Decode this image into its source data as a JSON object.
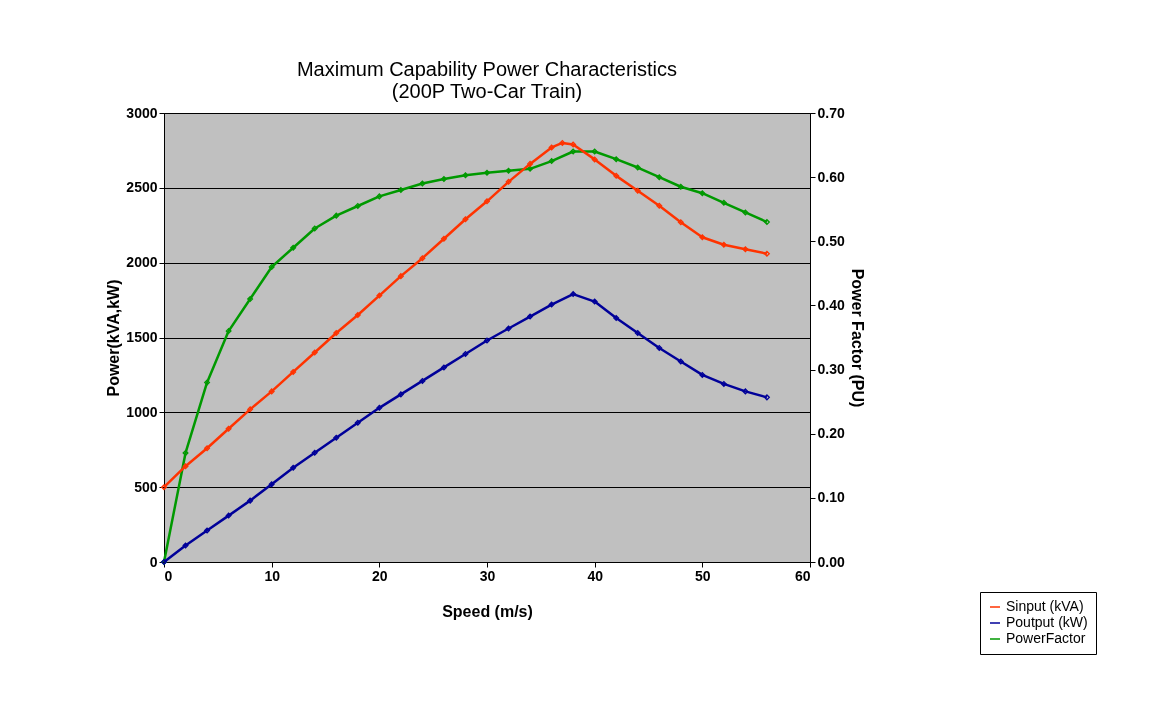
{
  "chart_data": {
    "type": "line",
    "title": [
      "Maximum Capability Power Characteristics",
      "(200P Two-Car Train)"
    ],
    "xlabel": "Speed (m/s)",
    "ylabel": "Power(kVA,kW)",
    "y2label": "Power Factor (PU)",
    "x": [
      0,
      2,
      4,
      6,
      8,
      10,
      12,
      14,
      16,
      18,
      20,
      22,
      24,
      26,
      28,
      30,
      32,
      34,
      36,
      38,
      40,
      42,
      44,
      46,
      48,
      50,
      52,
      54,
      56
    ],
    "series": [
      {
        "name": "Sinput (kVA)",
        "color": "#ff3300",
        "x": [
          0,
          2,
          4,
          6,
          8,
          10,
          12,
          14,
          16,
          18,
          20,
          22,
          24,
          26,
          28,
          30,
          32,
          34,
          36,
          37,
          38,
          40,
          42,
          44,
          46,
          48,
          50,
          52,
          54,
          56
        ],
        "values": [
          500,
          640,
          760,
          890,
          1020,
          1140,
          1270,
          1400,
          1530,
          1650,
          1780,
          1910,
          2030,
          2160,
          2290,
          2410,
          2540,
          2660,
          2770,
          2800,
          2790,
          2690,
          2580,
          2480,
          2380,
          2270,
          2170,
          2120,
          2090,
          2060
        ]
      },
      {
        "name": "Poutput (kW)",
        "color": "#000099",
        "values": [
          0,
          110,
          210,
          310,
          410,
          520,
          630,
          730,
          830,
          930,
          1030,
          1120,
          1210,
          1300,
          1390,
          1480,
          1560,
          1640,
          1720,
          1790,
          1740,
          1630,
          1530,
          1430,
          1340,
          1250,
          1190,
          1140,
          1100
        ]
      },
      {
        "name": "PowerFactor",
        "color": "#009900",
        "axis": "y2",
        "values": [
          0,
          0.17,
          0.28,
          0.36,
          0.41,
          0.46,
          0.49,
          0.52,
          0.54,
          0.555,
          0.57,
          0.58,
          0.59,
          0.597,
          0.603,
          0.607,
          0.61,
          0.613,
          0.625,
          0.64,
          0.64,
          0.628,
          0.615,
          0.6,
          0.585,
          0.575,
          0.56,
          0.545,
          0.53
        ]
      }
    ],
    "xlim": [
      0,
      60
    ],
    "xticks": [
      0,
      10,
      20,
      30,
      40,
      50,
      60
    ],
    "ylim": [
      0,
      3000
    ],
    "yticks": [
      0,
      500,
      1000,
      1500,
      2000,
      2500,
      3000
    ],
    "y2lim": [
      0,
      0.7
    ],
    "y2ticks": [
      {
        "value": 0,
        "label": "0.00"
      },
      {
        "value": 0.1,
        "label": "0.10"
      },
      {
        "value": 0.2,
        "label": "0.20"
      },
      {
        "value": 0.3,
        "label": "0.30"
      },
      {
        "value": 0.4,
        "label": "0.40"
      },
      {
        "value": 0.5,
        "label": "0.50"
      },
      {
        "value": 0.6,
        "label": "0.60"
      },
      {
        "value": 0.7,
        "label": "0.70"
      }
    ],
    "grid": "y",
    "legend": "bottom right",
    "marker": "diamond",
    "line_style": "solid"
  }
}
